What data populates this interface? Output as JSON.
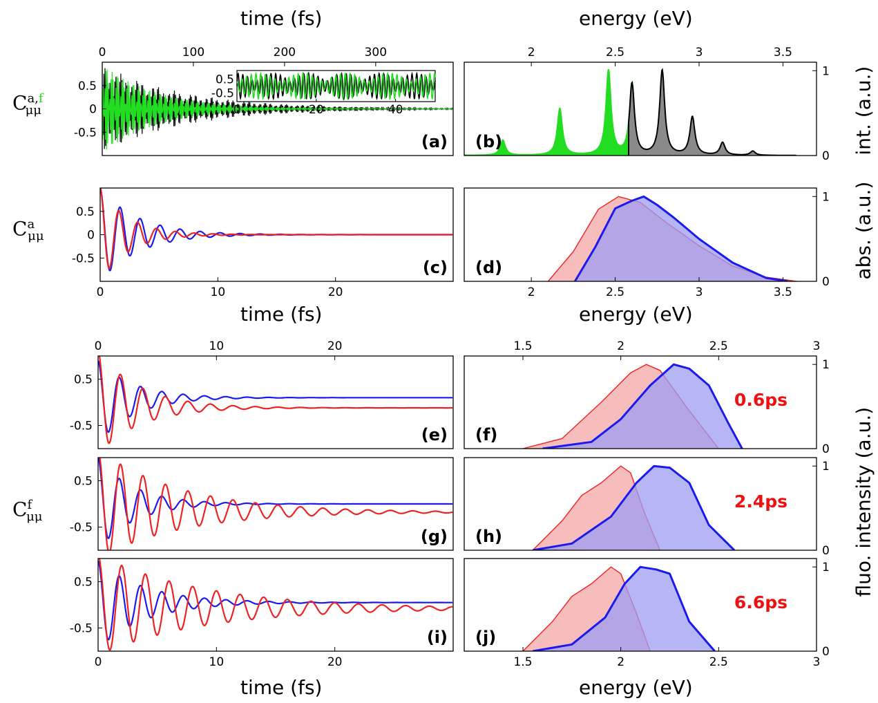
{
  "colors": {
    "black": "#000000",
    "green": "#22dd22",
    "red": "#ee2222",
    "blue": "#1a1aee",
    "red_fill": "#f4a6a6",
    "blue_fill": "#9d9df4",
    "grey_fill": "#8a8a8a"
  },
  "labels": {
    "time_top": "time (fs)",
    "energy_top": "energy (eV)",
    "time_mid": "time (fs)",
    "energy_mid": "energy (eV)",
    "time_bottom": "time (fs)",
    "energy_bottom": "energy (eV)",
    "y_int": "int. (a.u.)",
    "y_abs": "abs. (a.u.)",
    "y_fluo": "fluo. intensity (a.u.)",
    "sym_C": "C",
    "sym_sub": "μμ",
    "sym_sup_a": "a,",
    "sym_sup_f_green": "f",
    "sym_sup_only_a": "a",
    "sym_sup_only_f": "f"
  },
  "chart_data": [
    {
      "id": "a",
      "type": "line",
      "panel_label": "(a)",
      "xlim": [
        0,
        385
      ],
      "ylim": [
        -1,
        1
      ],
      "xticks": [
        0,
        100,
        200,
        300
      ],
      "yticks": [
        "0.5",
        "0",
        "-0.5"
      ],
      "series": [
        {
          "color": "black",
          "envelope": "beating, decaying"
        },
        {
          "color": "green",
          "envelope": "decaying"
        }
      ],
      "inset": {
        "xlim": [
          0,
          50
        ],
        "xticks": [
          0,
          20,
          40
        ],
        "yticks": [
          "0.5",
          "-0.5"
        ]
      }
    },
    {
      "id": "b",
      "type": "line",
      "panel_label": "(b)",
      "xlim": [
        1.6,
        3.7
      ],
      "ylim": [
        0,
        1.1
      ],
      "xticks": [
        2,
        2.5,
        3,
        3.5
      ],
      "yticks": [
        "1",
        "0"
      ],
      "series": [
        {
          "color": "green",
          "peaks": [
            [
              1.53,
              0.04
            ],
            [
              1.83,
              0.18
            ],
            [
              2.17,
              0.55
            ],
            [
              2.46,
              1.0
            ],
            [
              2.6,
              0.85
            ]
          ]
        },
        {
          "color": "black",
          "peaks": [
            [
              2.6,
              0.85
            ],
            [
              2.78,
              1.0
            ],
            [
              2.96,
              0.45
            ],
            [
              3.14,
              0.15
            ],
            [
              3.32,
              0.05
            ]
          ]
        }
      ]
    },
    {
      "id": "c",
      "type": "line",
      "panel_label": "(c)",
      "xlim": [
        0,
        30
      ],
      "ylim": [
        -1,
        1
      ],
      "xticks": [
        0,
        10,
        20
      ],
      "yticks": [
        "0.5",
        "0",
        "-0.5"
      ],
      "series": [
        {
          "color": "blue",
          "period_fs": 1.7,
          "decay_fs": 3.2
        },
        {
          "color": "red",
          "period_fs": 1.6,
          "decay_fs": 2.4
        }
      ]
    },
    {
      "id": "d",
      "type": "area",
      "panel_label": "(d)",
      "xlim": [
        1.6,
        3.7
      ],
      "ylim": [
        0,
        1.1
      ],
      "xticks": [
        2,
        2.5,
        3,
        3.5
      ],
      "yticks": [
        "1",
        "0"
      ],
      "series": [
        {
          "color": "red",
          "x": [
            2.1,
            2.25,
            2.4,
            2.52,
            2.65,
            2.8,
            3.0,
            3.2,
            3.4,
            3.58
          ],
          "y": [
            0,
            0.35,
            0.85,
            1.0,
            0.93,
            0.7,
            0.42,
            0.18,
            0.05,
            0
          ]
        },
        {
          "color": "blue",
          "x": [
            2.26,
            2.38,
            2.5,
            2.6,
            2.67,
            2.75,
            2.85,
            3.0,
            3.2,
            3.4,
            3.53
          ],
          "y": [
            0,
            0.4,
            0.86,
            0.95,
            1.0,
            0.9,
            0.75,
            0.5,
            0.22,
            0.04,
            0
          ]
        }
      ]
    },
    {
      "id": "e",
      "type": "line",
      "panel_label": "(e)",
      "xlim": [
        0,
        30
      ],
      "ylim": [
        -1,
        1
      ],
      "xticks": [
        0,
        10,
        20
      ],
      "yticks": [
        "0.5",
        "-0.5"
      ],
      "series": [
        {
          "color": "blue",
          "offset": 0.1,
          "period_fs": 1.8,
          "decay_fs": 3.0
        },
        {
          "color": "red",
          "offset": -0.12,
          "period_fs": 1.9,
          "decay_fs": 3.5
        }
      ]
    },
    {
      "id": "f",
      "type": "area",
      "panel_label": "(f)",
      "annotation": "0.6ps",
      "xlim": [
        1.2,
        3.0
      ],
      "ylim": [
        0,
        1.1
      ],
      "xticks": [
        1.5,
        2,
        2.5,
        3
      ],
      "yticks": [
        "1",
        "0"
      ],
      "series": [
        {
          "color": "red",
          "x": [
            1.5,
            1.7,
            1.9,
            2.05,
            2.13,
            2.2,
            2.35,
            2.5
          ],
          "y": [
            0,
            0.12,
            0.55,
            0.9,
            1.0,
            0.93,
            0.45,
            0
          ]
        },
        {
          "color": "blue",
          "x": [
            1.6,
            1.85,
            2.0,
            2.15,
            2.27,
            2.35,
            2.45,
            2.55,
            2.62
          ],
          "y": [
            0,
            0.08,
            0.35,
            0.75,
            1.0,
            0.95,
            0.75,
            0.3,
            0
          ]
        }
      ]
    },
    {
      "id": "g",
      "type": "line",
      "panel_label": "(g)",
      "xlim": [
        0,
        30
      ],
      "ylim": [
        -1,
        1
      ],
      "xticks": [],
      "yticks": [
        "0.5",
        "-0.5"
      ],
      "series": [
        {
          "color": "blue",
          "offset": 0.0,
          "period_fs": 1.8,
          "decay_fs": 3.0
        },
        {
          "color": "red",
          "offset": -0.18,
          "period_fs": 1.9,
          "decay_fs": 7.0
        }
      ]
    },
    {
      "id": "h",
      "type": "area",
      "panel_label": "(h)",
      "annotation": "2.4ps",
      "xlim": [
        1.2,
        3.0
      ],
      "ylim": [
        0,
        1.1
      ],
      "xticks": [],
      "yticks": [
        "1",
        "0"
      ],
      "series": [
        {
          "color": "red",
          "x": [
            1.55,
            1.7,
            1.8,
            1.9,
            2.0,
            2.05,
            2.12,
            2.2
          ],
          "y": [
            0,
            0.35,
            0.65,
            0.8,
            1.0,
            0.92,
            0.45,
            0
          ]
        },
        {
          "color": "blue",
          "x": [
            1.55,
            1.75,
            1.95,
            2.08,
            2.17,
            2.25,
            2.35,
            2.45,
            2.58
          ],
          "y": [
            0,
            0.08,
            0.4,
            0.8,
            1.0,
            0.98,
            0.8,
            0.3,
            0
          ]
        }
      ]
    },
    {
      "id": "i",
      "type": "line",
      "panel_label": "(i)",
      "xlim": [
        0,
        30
      ],
      "ylim": [
        -1,
        1
      ],
      "xticks": [
        0,
        10,
        20
      ],
      "yticks": [
        "0.5",
        "-0.5"
      ],
      "series": [
        {
          "color": "blue",
          "offset": 0.05,
          "period_fs": 1.8,
          "decay_fs": 4.0
        },
        {
          "color": "red",
          "offset": -0.08,
          "period_fs": 2.0,
          "decay_fs": 9.0
        }
      ]
    },
    {
      "id": "j",
      "type": "area",
      "panel_label": "(j)",
      "annotation": "6.6ps",
      "xlim": [
        1.2,
        3.0
      ],
      "ylim": [
        0,
        1.1
      ],
      "xticks": [
        1.5,
        2,
        2.5,
        3
      ],
      "yticks": [
        "1",
        "0"
      ],
      "series": [
        {
          "color": "red",
          "x": [
            1.5,
            1.65,
            1.75,
            1.85,
            1.95,
            2.0,
            2.08,
            2.15
          ],
          "y": [
            0,
            0.35,
            0.65,
            0.8,
            1.0,
            0.92,
            0.45,
            0
          ]
        },
        {
          "color": "blue",
          "x": [
            1.55,
            1.75,
            1.92,
            2.02,
            2.1,
            2.18,
            2.25,
            2.35,
            2.48
          ],
          "y": [
            0,
            0.08,
            0.4,
            0.8,
            1.0,
            0.97,
            0.92,
            0.35,
            0
          ]
        }
      ]
    }
  ]
}
